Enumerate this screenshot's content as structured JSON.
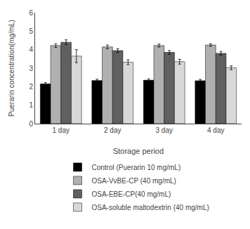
{
  "chart_data": {
    "type": "bar",
    "categories": [
      "1 day",
      "2 day",
      "3 day",
      "4 day"
    ],
    "series": [
      {
        "name": "Control (Puerarin 10 mg/mL)",
        "color": "#000000",
        "values": [
          2.15,
          2.33,
          2.35,
          2.32
        ],
        "errors": [
          0.07,
          0.07,
          0.07,
          0.07
        ]
      },
      {
        "name": "OSA-VvBE-CP (40 mg/mL)",
        "color": "#b0b0b0",
        "values": [
          4.22,
          4.15,
          4.22,
          4.25
        ],
        "errors": [
          0.1,
          0.1,
          0.08,
          0.07
        ]
      },
      {
        "name": "OSA-EBE-CP(40 mg/mL)",
        "color": "#606060",
        "values": [
          4.4,
          3.95,
          3.85,
          3.8
        ],
        "errors": [
          0.13,
          0.1,
          0.1,
          0.1
        ]
      },
      {
        "name": "OSA-soluble maltodextrin (40 mg/mL)",
        "color": "#d8d8d8",
        "values": [
          3.65,
          3.32,
          3.35,
          3.02
        ],
        "errors": [
          0.35,
          0.13,
          0.13,
          0.1
        ]
      }
    ],
    "xlabel": "Storage period",
    "ylabel": "Puerarin concentration(mg/mL)",
    "ylim": [
      0,
      6
    ],
    "yticks": [
      0,
      1,
      2,
      3,
      4,
      5,
      6
    ],
    "grid": false,
    "legend": "bottom"
  }
}
